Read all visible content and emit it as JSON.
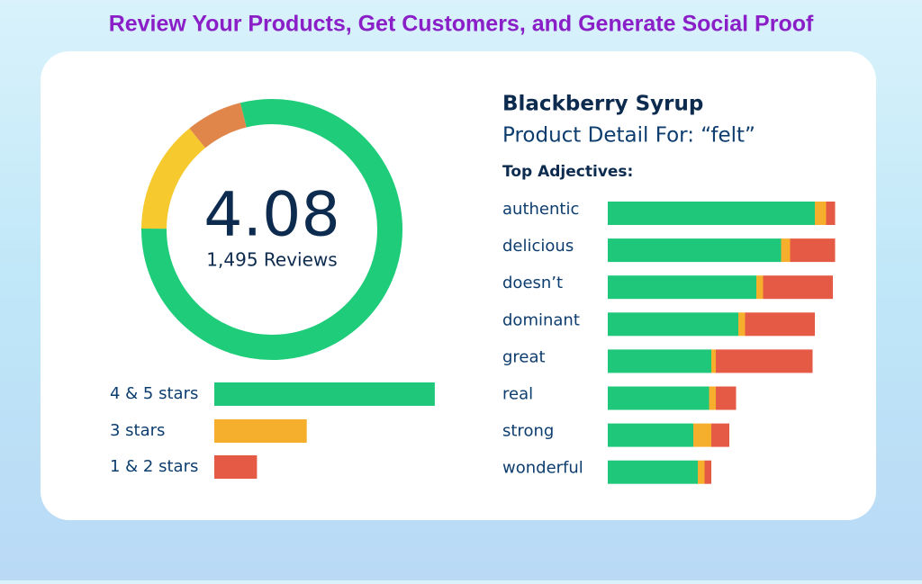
{
  "title": "Review Your Products, Get Customers, and Generate Social Proof",
  "chart_data": [
    {
      "type": "donut",
      "center_value": 4.08,
      "center_label": "1,495 Reviews",
      "values": [
        79,
        14,
        7
      ],
      "colors": [
        "#1fcc7a",
        "#f6c92e",
        "#e0864a"
      ]
    },
    {
      "type": "hbar",
      "categories": [
        "4 & 5 stars",
        "3 stars",
        "1 & 2 stars"
      ],
      "values": [
        62,
        26,
        12
      ],
      "colors": [
        "#1fc77b",
        "#f6ae2d",
        "#e55a45"
      ]
    },
    {
      "type": "stacked-hbar",
      "title": "Blackberry Syrup",
      "subtitle": "Product Detail For: “felt”",
      "heading": "Top Adjectives:",
      "categories": [
        "authentic",
        "delicious",
        "doesn’t",
        "dominant",
        "great",
        "real",
        "strong",
        "wonderful"
      ],
      "series": [
        {
          "color": "#1fc77b",
          "values": [
            92,
            77,
            66,
            58,
            46,
            45,
            38,
            40
          ]
        },
        {
          "color": "#f6ae2d",
          "values": [
            5,
            4,
            3,
            3,
            2,
            3,
            8,
            3
          ]
        },
        {
          "color": "#e55a45",
          "values": [
            4,
            20,
            31,
            31,
            43,
            9,
            8,
            3
          ]
        }
      ]
    }
  ]
}
